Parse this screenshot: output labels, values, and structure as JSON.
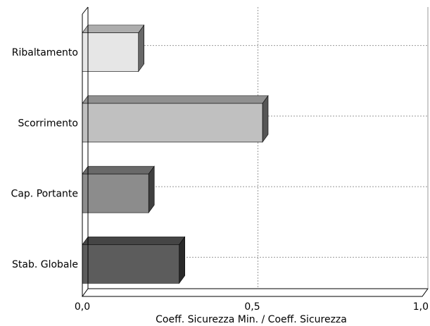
{
  "chart_data": {
    "type": "bar",
    "orientation": "horizontal",
    "style": "3d",
    "categories": [
      "Ribaltamento",
      "Scorrimento",
      "Cap. Portante",
      "Stab. Globale"
    ],
    "values": [
      0.165,
      0.53,
      0.195,
      0.285
    ],
    "colors": [
      "#e6e6e6",
      "#c0c0c0",
      "#8c8c8c",
      "#5c5c5c"
    ],
    "xlabel": "Coeff. Sicurezza Min. / Coeff. Sicurezza",
    "ylabel": "",
    "title": "",
    "xlim": [
      0,
      1
    ],
    "xticks": [
      0,
      0.5,
      1
    ],
    "xtick_labels": [
      "0,0",
      "0,5",
      "1,0"
    ],
    "grid": true,
    "legend": "none"
  }
}
